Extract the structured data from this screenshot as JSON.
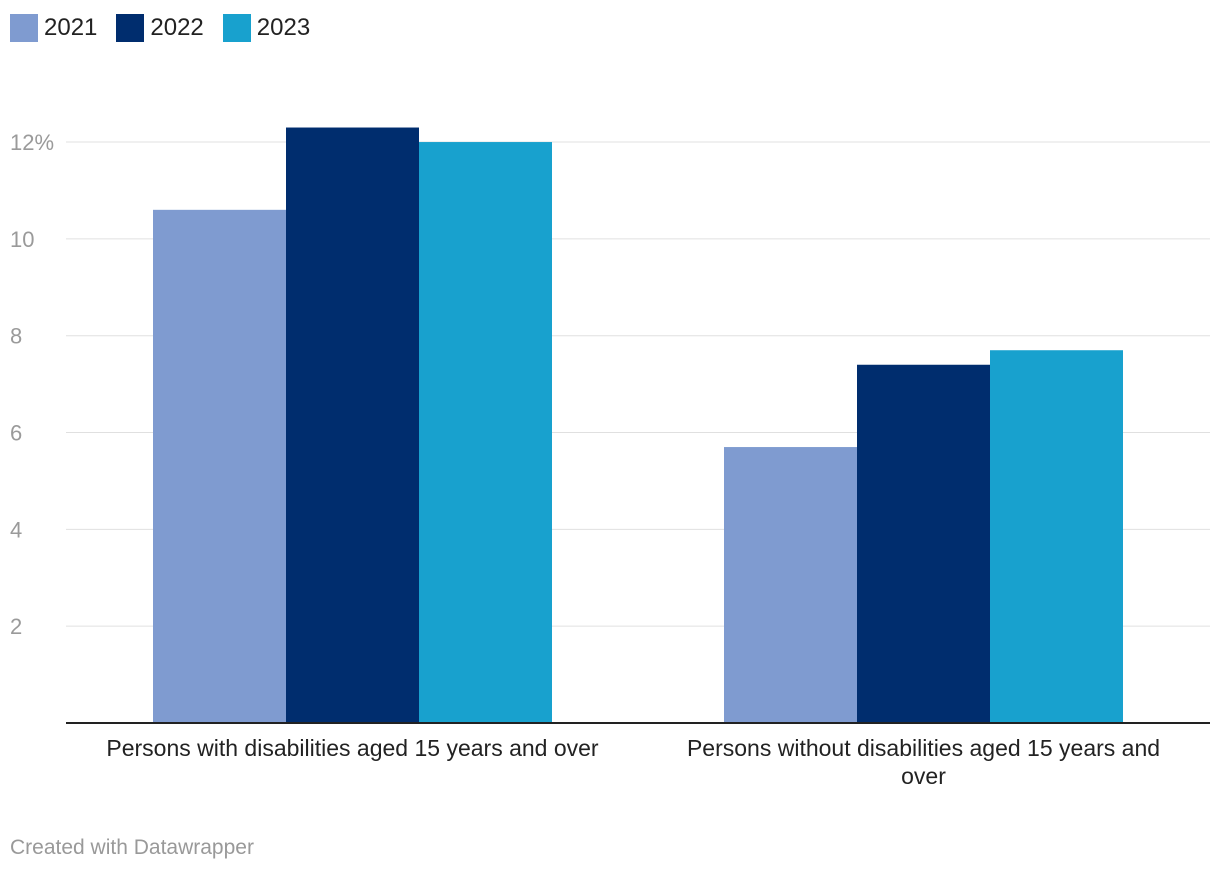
{
  "chart_data": {
    "type": "bar",
    "title": "",
    "xlabel": "",
    "ylabel": "",
    "categories": [
      "Persons with disabilities aged 15 years and over",
      "Persons without disabilities aged 15 years and over"
    ],
    "series": [
      {
        "name": "2021",
        "values": [
          10.6,
          5.7
        ],
        "color": "#7f9bd0"
      },
      {
        "name": "2022",
        "values": [
          12.3,
          7.4
        ],
        "color": "#002d6e"
      },
      {
        "name": "2023",
        "values": [
          12.0,
          7.7
        ],
        "color": "#18a1ce"
      }
    ],
    "ylim": [
      0,
      12.6
    ],
    "yticks": [
      {
        "value": 2,
        "label": "2"
      },
      {
        "value": 4,
        "label": "4"
      },
      {
        "value": 6,
        "label": "6"
      },
      {
        "value": 8,
        "label": "8"
      },
      {
        "value": 10,
        "label": "10"
      },
      {
        "value": 12,
        "label": "12%"
      }
    ],
    "grid": true,
    "legend_position": "top-left"
  },
  "footer": {
    "credit": "Created with Datawrapper"
  }
}
